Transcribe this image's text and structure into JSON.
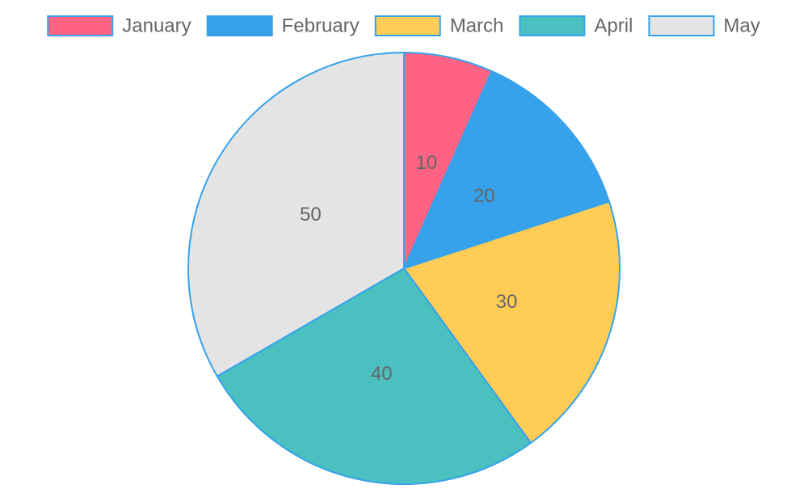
{
  "chart_data": {
    "type": "pie",
    "categories": [
      "January",
      "February",
      "March",
      "April",
      "May"
    ],
    "values": [
      10,
      20,
      30,
      40,
      50
    ],
    "colors": [
      "#ff6384",
      "#36a2eb",
      "#ffcd56",
      "#4bc0c0",
      "#e4e4e4"
    ],
    "border_color": "#36a2eb",
    "data_labels": [
      "10",
      "20",
      "30",
      "40",
      "50"
    ],
    "legend_position": "top",
    "start_angle": "top, clockwise"
  }
}
